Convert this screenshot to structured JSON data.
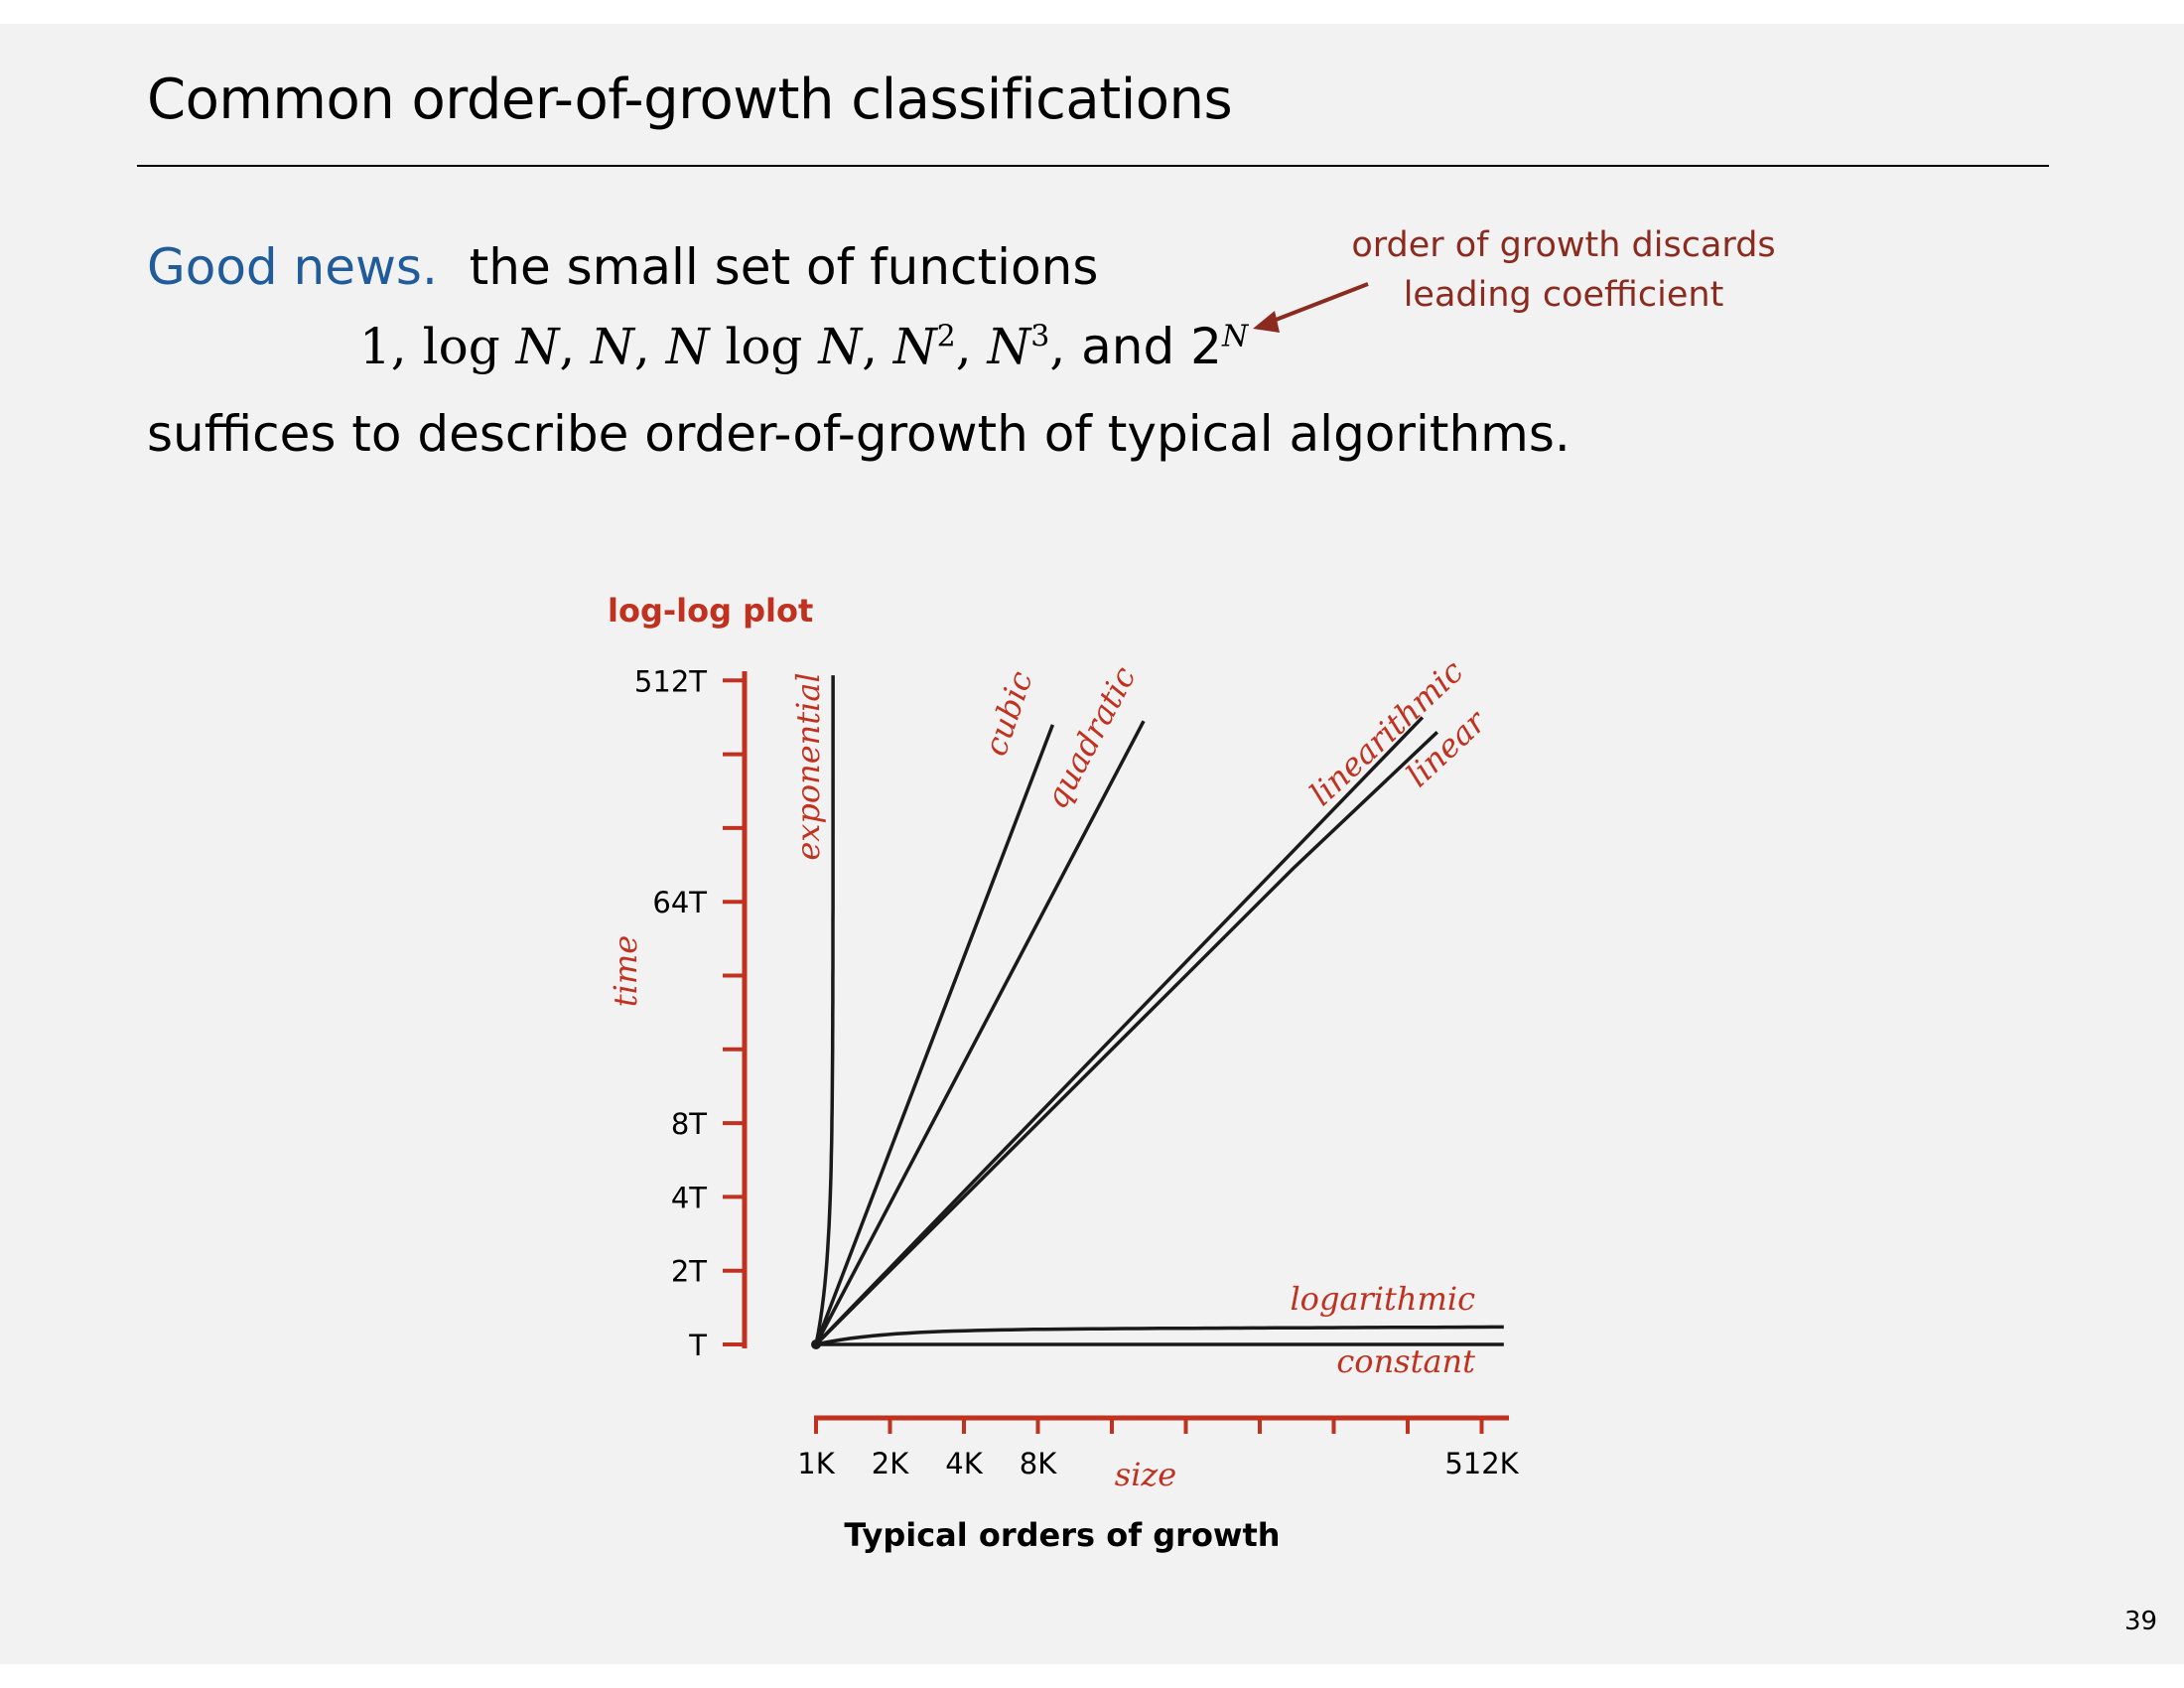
{
  "slide": {
    "title": "Common order-of-growth classifications",
    "good_news_lead": "Good news.",
    "good_news_text": "the small set of functions",
    "functions_math": "1,  log N,  N,  N log N,  N 2,  N 3,",
    "functions_and": " and 2N",
    "suffices_text": "suffices to describe order-of-growth of typical algorithms.",
    "note_line1": "order of growth discards",
    "note_line2": "leading coefficient",
    "page_number": "39"
  },
  "colors": {
    "accent": "#c0311f",
    "note": "#8b2a1e",
    "blue": "#1f5c99",
    "curve": "#1a1a1a"
  },
  "chart_data": {
    "type": "line",
    "title": "log-log plot",
    "caption": "Typical orders of growth",
    "xlabel": "size",
    "ylabel": "time",
    "xscale": "log2",
    "yscale": "log2",
    "x_ticks": [
      "1K",
      "2K",
      "4K",
      "8K",
      "",
      "",
      "",
      "",
      "",
      "512K"
    ],
    "y_ticks": [
      "T",
      "2T",
      "4T",
      "8T",
      "",
      "",
      "64T",
      "",
      "",
      "512T"
    ],
    "xlim": [
      "1K",
      "512K"
    ],
    "ylim": [
      "T",
      "512T"
    ],
    "series": [
      {
        "name": "exponential",
        "label_angle": -90
      },
      {
        "name": "cubic",
        "label_angle": -71
      },
      {
        "name": "quadratic",
        "label_angle": -62
      },
      {
        "name": "linearithmic",
        "label_angle": -43
      },
      {
        "name": "linear",
        "label_angle": -43
      },
      {
        "name": "logarithmic",
        "label_angle": 0
      },
      {
        "name": "constant",
        "label_angle": 0
      }
    ]
  }
}
